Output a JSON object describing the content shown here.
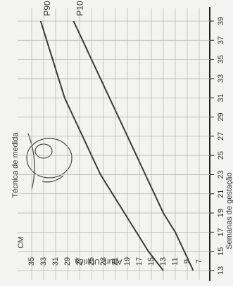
{
  "chart_data": {
    "type": "line",
    "title": "Técnica de medida",
    "ylabel": "Altura Uterina",
    "ylabel_unit": "CM",
    "xlabel": "Semanas de gestação",
    "x": [
      13,
      15,
      17,
      19,
      21,
      23,
      25,
      27,
      29,
      31,
      33,
      35,
      37,
      39
    ],
    "series": [
      {
        "name": "P90",
        "color": "#3a3a3a",
        "values": [
          13,
          15.5,
          17.5,
          19.5,
          21.5,
          23.5,
          25,
          26.5,
          28,
          29.5,
          30.5,
          31.5,
          32.5,
          33.5
        ]
      },
      {
        "name": "P10",
        "color": "#3a3a3a",
        "values": [
          8,
          9.5,
          11,
          13,
          14.5,
          16,
          17.5,
          19,
          20.5,
          22,
          23.5,
          25,
          26.5,
          28
        ]
      }
    ],
    "xlim": [
      13,
      39
    ],
    "xticks": [
      13,
      15,
      17,
      19,
      21,
      23,
      25,
      27,
      29,
      31,
      33,
      35,
      37,
      39
    ],
    "ylim": [
      7,
      35
    ],
    "yticks": [
      7,
      9,
      11,
      13,
      15,
      17,
      19,
      21,
      23,
      25,
      27,
      29,
      31,
      33,
      35
    ],
    "grid": true
  }
}
